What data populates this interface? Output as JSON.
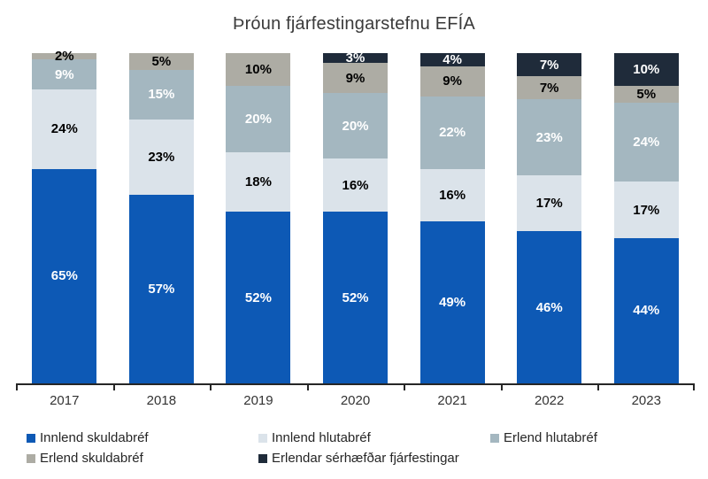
{
  "title": "Þróun fjárfestingarstefnu EFÍA",
  "chart_data": {
    "type": "bar",
    "stacked": true,
    "title": "Þróun fjárfestingarstefnu EFÍA",
    "categories": [
      "2017",
      "2018",
      "2019",
      "2020",
      "2021",
      "2022",
      "2023"
    ],
    "series": [
      {
        "name": "Innlend skuldabréf",
        "color": "#0d59b5",
        "label_color": "#ffffff",
        "values": [
          65,
          57,
          52,
          52,
          49,
          46,
          44
        ]
      },
      {
        "name": "Innlend hlutabréf",
        "color": "#dbe3ea",
        "label_color": "#000000",
        "values": [
          24,
          23,
          18,
          16,
          16,
          17,
          17
        ]
      },
      {
        "name": "Erlend hlutabréf",
        "color": "#a4b7c0",
        "label_color": "#ffffff",
        "values": [
          9,
          15,
          20,
          20,
          22,
          23,
          24
        ]
      },
      {
        "name": "Erlend skuldabréf",
        "color": "#adaca4",
        "label_color": "#000000",
        "values": [
          2,
          5,
          10,
          9,
          9,
          7,
          5
        ]
      },
      {
        "name": "Erlendar sérhæfðar fjárfestingar",
        "color": "#1f2b3a",
        "label_color": "#ffffff",
        "values": [
          0,
          0,
          0,
          3,
          4,
          7,
          10
        ]
      }
    ],
    "value_suffix": "%",
    "xlabel": "",
    "ylabel": "",
    "ylim": [
      0,
      100
    ],
    "grid": false,
    "axis_color": "#262626",
    "legend_position": "bottom"
  }
}
